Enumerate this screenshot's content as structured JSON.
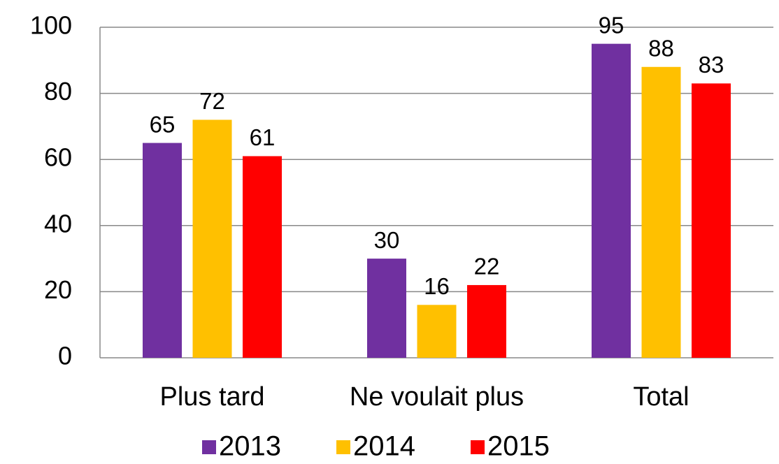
{
  "chart_data": {
    "type": "bar",
    "categories": [
      "Plus tard",
      "Ne voulait plus",
      "Total"
    ],
    "series": [
      {
        "name": "2013",
        "color": "#7030a0",
        "values": [
          65,
          30,
          95
        ]
      },
      {
        "name": "2014",
        "color": "#ffc000",
        "values": [
          72,
          16,
          88
        ]
      },
      {
        "name": "2015",
        "color": "#ff0000",
        "values": [
          61,
          22,
          83
        ]
      }
    ],
    "ylim": [
      0,
      100
    ],
    "yticks": [
      0,
      20,
      40,
      60,
      80,
      100
    ],
    "grid": true,
    "legend": "bottom"
  }
}
